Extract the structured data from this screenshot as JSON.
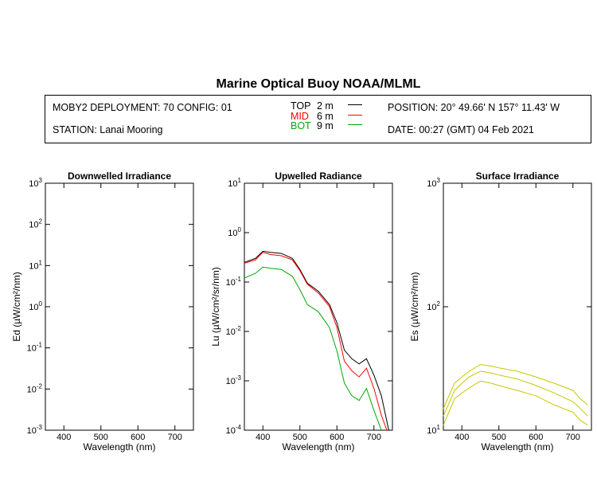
{
  "header": {
    "title": "Marine Optical Buoy NOAA/MLML",
    "deployment": "MOBY2 DEPLOYMENT: 70 CONFIG: 01",
    "station": "STATION: Lanai Mooring",
    "position": "POSITION: 20° 49.66' N   157° 11.43' W",
    "date": "DATE: 00:27 (GMT) 04 Feb 2021"
  },
  "legend": [
    {
      "name": "TOP",
      "depth": "2  m",
      "color": "#000000"
    },
    {
      "name": "MID",
      "depth": "6  m",
      "color": "#ff0000"
    },
    {
      "name": "BOT",
      "depth": "9  m",
      "color": "#00aa00"
    }
  ],
  "chart_data": [
    {
      "type": "line",
      "title": "Downwelled Irradiance",
      "xlabel": "Wavelength (nm)",
      "ylabel": "Ed  (µW/cm²/nm)",
      "xlim": [
        350,
        750
      ],
      "ylim": [
        0.001,
        1000
      ],
      "yscale": "log",
      "x_ticks": [
        400,
        500,
        600,
        700
      ],
      "series": []
    },
    {
      "type": "line",
      "title": "Upwelled Radiance",
      "xlabel": "Wavelength (nm)",
      "ylabel": "Lu  (µW/cm²/sr/nm)",
      "xlim": [
        350,
        750
      ],
      "ylim": [
        0.0001,
        10
      ],
      "yscale": "log",
      "x_ticks": [
        400,
        500,
        600,
        700
      ],
      "series": [
        {
          "name": "TOP",
          "color": "#000000",
          "x": [
            350,
            380,
            400,
            420,
            450,
            480,
            500,
            520,
            550,
            580,
            600,
            620,
            640,
            660,
            680,
            700,
            720,
            740
          ],
          "y": [
            0.25,
            0.3,
            0.42,
            0.4,
            0.38,
            0.3,
            0.18,
            0.095,
            0.065,
            0.035,
            0.015,
            0.0042,
            0.0028,
            0.0022,
            0.0028,
            0.0013,
            0.0005,
            0.0001
          ]
        },
        {
          "name": "MID",
          "color": "#ff0000",
          "x": [
            350,
            380,
            400,
            420,
            450,
            480,
            500,
            520,
            550,
            580,
            600,
            620,
            640,
            660,
            680,
            700,
            720,
            735
          ],
          "y": [
            0.24,
            0.28,
            0.4,
            0.36,
            0.34,
            0.28,
            0.17,
            0.09,
            0.06,
            0.032,
            0.012,
            0.0025,
            0.0016,
            0.0012,
            0.0018,
            0.0007,
            0.0002,
            0.0001
          ]
        },
        {
          "name": "BOT",
          "color": "#00aa00",
          "x": [
            350,
            380,
            400,
            420,
            450,
            480,
            500,
            520,
            550,
            580,
            600,
            620,
            640,
            660,
            680,
            700,
            720
          ],
          "y": [
            0.12,
            0.15,
            0.2,
            0.19,
            0.18,
            0.13,
            0.07,
            0.035,
            0.025,
            0.012,
            0.004,
            0.0009,
            0.0005,
            0.0004,
            0.0007,
            0.00025,
            0.0001
          ]
        }
      ]
    },
    {
      "type": "line",
      "title": "Surface Irradiance",
      "xlabel": "Wavelength (nm)",
      "ylabel": "Es  (µW/cm²/nm)",
      "xlim": [
        350,
        750
      ],
      "ylim": [
        10,
        1000
      ],
      "yscale": "log",
      "x_ticks": [
        400,
        500,
        600,
        700
      ],
      "series": [
        {
          "color": "#c8c800",
          "x": [
            350,
            380,
            400,
            420,
            450,
            480,
            500,
            550,
            600,
            650,
            700,
            720,
            740
          ],
          "y": [
            15,
            24,
            27,
            30,
            34,
            33,
            32,
            30,
            27,
            24,
            21,
            18,
            16
          ]
        },
        {
          "color": "#c8c800",
          "x": [
            350,
            380,
            400,
            420,
            450,
            480,
            500,
            550,
            600,
            650,
            700,
            720,
            740
          ],
          "y": [
            13,
            21,
            24,
            27,
            30,
            29,
            28,
            26,
            23,
            20,
            17,
            15,
            13
          ]
        },
        {
          "color": "#c8c800",
          "x": [
            350,
            380,
            400,
            420,
            450,
            480,
            500,
            550,
            600,
            650,
            700,
            720,
            740
          ],
          "y": [
            11,
            18,
            20,
            22,
            25,
            24,
            23,
            21,
            19,
            16,
            14,
            12,
            11
          ]
        }
      ]
    }
  ]
}
